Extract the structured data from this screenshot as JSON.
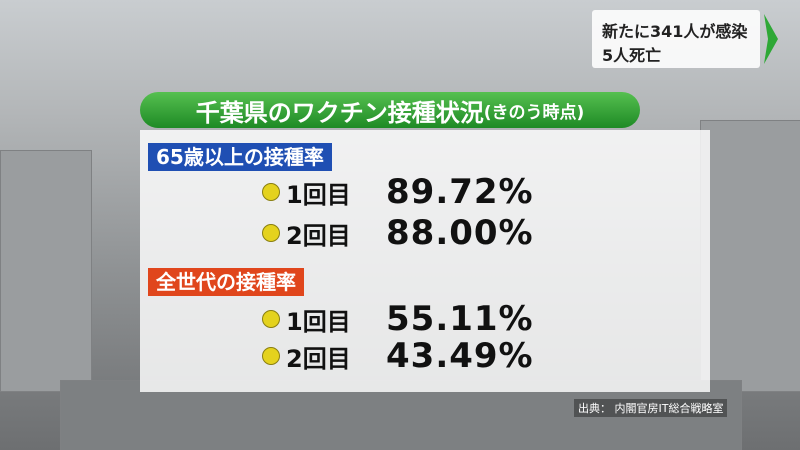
{
  "ticker": {
    "line1": "新たに341人が感染",
    "line2": "5人死亡"
  },
  "title": {
    "main": "千葉県のワクチン接種状況",
    "sub": "(きのう時点)"
  },
  "sections": [
    {
      "heading": "65歳以上の接種率",
      "rows": [
        {
          "label": "1回目",
          "value": "89.72%"
        },
        {
          "label": "2回目",
          "value": "88.00%"
        }
      ]
    },
    {
      "heading": "全世代の接種率",
      "rows": [
        {
          "label": "1回目",
          "value": "55.11%"
        },
        {
          "label": "2回目",
          "value": "43.49%"
        }
      ]
    }
  ],
  "source": "出典： 内閣官房IT総合戦略室"
}
